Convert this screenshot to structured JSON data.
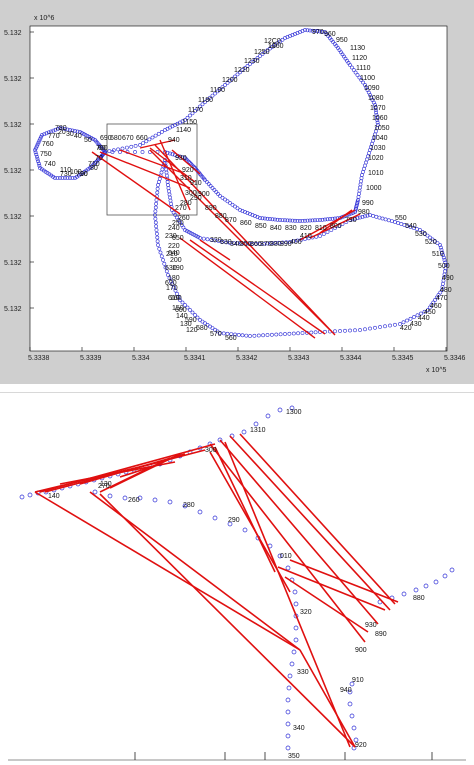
{
  "chart_data": [
    {
      "type": "scatter",
      "exponent_y": "x 10^6",
      "exponent_x": "x 10^5",
      "y_ticks": [
        "5.132",
        "5.132",
        "5.132",
        "5.132",
        "5.132",
        "5.132",
        "5.132"
      ],
      "x_ticks": [
        "5.3338",
        "5.3339",
        "5.334",
        "5.3341",
        "5.3342",
        "5.3343",
        "5.3344",
        "5.3345",
        "5.3346"
      ],
      "point_labels": [
        "1260",
        "1250",
        "12C0",
        "1230",
        "1220",
        "1200",
        "1190",
        "1180",
        "1170",
        "1150",
        "1140",
        "1130",
        "1120",
        "1110",
        "1100",
        "1090",
        "1080",
        "1070",
        "1060",
        "1050",
        "1040",
        "1030",
        "1020",
        "1010",
        "1000",
        "990",
        "980",
        "970",
        "960",
        "950",
        "940",
        "930",
        "920",
        "910",
        "900",
        "890",
        "880",
        "870",
        "860",
        "850",
        "840",
        "830",
        "820",
        "810",
        "800",
        "790",
        "780",
        "770",
        "760",
        "750",
        "740",
        "730",
        "720",
        "710",
        "700",
        "690",
        "680",
        "670",
        "660",
        "650",
        "640",
        "630",
        "620",
        "610",
        "600",
        "590",
        "580",
        "570",
        "560",
        "550",
        "540",
        "530",
        "520",
        "510",
        "500",
        "490",
        "480",
        "470",
        "460",
        "450",
        "440",
        "430",
        "420",
        "410",
        "400",
        "390",
        "380",
        "370",
        "360",
        "350",
        "340",
        "330",
        "320",
        "310",
        "300",
        "290",
        "280",
        "270",
        "260",
        "250",
        "240",
        "230",
        "220",
        "210",
        "200",
        "190",
        "180",
        "170",
        "160",
        "150",
        "140",
        "130",
        "120",
        "110",
        "100",
        "90",
        "80",
        "70",
        "60",
        "50",
        "40",
        "30",
        "20",
        "10"
      ],
      "grid": false
    },
    {
      "type": "scatter",
      "point_labels": [
        "1300",
        "1310",
        "300",
        "260",
        "270",
        "280",
        "290",
        "140",
        "130",
        "010",
        "880",
        "890",
        "900",
        "910",
        "920",
        "930",
        "940",
        "320",
        "330",
        "340",
        "350"
      ],
      "grid": false
    }
  ]
}
